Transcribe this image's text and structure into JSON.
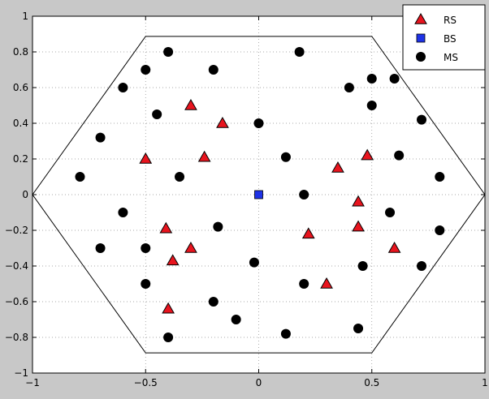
{
  "chart_data": {
    "type": "scatter",
    "title": "",
    "xlabel": "",
    "ylabel": "",
    "xlim": [
      -1,
      1
    ],
    "ylim": [
      -1,
      1
    ],
    "xticks": [
      -1,
      -0.5,
      0,
      0.5,
      1
    ],
    "yticks": [
      -1,
      -0.8,
      -0.6,
      -0.4,
      -0.2,
      0,
      0.2,
      0.4,
      0.6,
      0.8,
      1
    ],
    "xtick_labels": [
      "−1",
      "−0.5",
      "0",
      "0.5",
      "1"
    ],
    "ytick_labels": [
      "−1",
      "−0.8",
      "−0.6",
      "−0.4",
      "−0.2",
      "0",
      "0.2",
      "0.4",
      "0.6",
      "0.8",
      "1"
    ],
    "grid": true,
    "legend_position": "top-right",
    "background_color": "#c8c8c8",
    "plot_color": "#ffffff",
    "hexagon": [
      [
        -1,
        0
      ],
      [
        -0.5,
        0.887
      ],
      [
        0.5,
        0.887
      ],
      [
        1,
        0
      ],
      [
        0.5,
        -0.887
      ],
      [
        -0.5,
        -0.887
      ]
    ],
    "series": [
      {
        "name": "RS",
        "marker": "triangle",
        "color": "#e8141e",
        "points": [
          [
            -0.3,
            0.5
          ],
          [
            -0.16,
            0.4
          ],
          [
            -0.5,
            0.2
          ],
          [
            -0.24,
            0.21
          ],
          [
            0.35,
            0.15
          ],
          [
            0.48,
            0.22
          ],
          [
            0.44,
            -0.04
          ],
          [
            0.44,
            -0.18
          ],
          [
            0.22,
            -0.22
          ],
          [
            0.6,
            -0.3
          ],
          [
            0.3,
            -0.5
          ],
          [
            -0.41,
            -0.19
          ],
          [
            -0.3,
            -0.3
          ],
          [
            -0.38,
            -0.37
          ],
          [
            -0.4,
            -0.64
          ]
        ]
      },
      {
        "name": "BS",
        "marker": "square",
        "color": "#1e32e6",
        "points": [
          [
            0,
            0
          ]
        ]
      },
      {
        "name": "MS",
        "marker": "circle",
        "color": "#000000",
        "points": [
          [
            -0.4,
            0.8
          ],
          [
            -0.2,
            0.7
          ],
          [
            -0.5,
            0.7
          ],
          [
            -0.6,
            0.6
          ],
          [
            -0.45,
            0.45
          ],
          [
            -0.7,
            0.32
          ],
          [
            -0.79,
            0.1
          ],
          [
            -0.35,
            0.1
          ],
          [
            0,
            0.4
          ],
          [
            0.18,
            0.8
          ],
          [
            0.4,
            0.6
          ],
          [
            0.5,
            0.65
          ],
          [
            0.6,
            0.65
          ],
          [
            0.5,
            0.5
          ],
          [
            0.72,
            0.42
          ],
          [
            0.12,
            0.21
          ],
          [
            0.62,
            0.22
          ],
          [
            0.8,
            0.1
          ],
          [
            0.2,
            0
          ],
          [
            -0.6,
            -0.1
          ],
          [
            -0.18,
            -0.18
          ],
          [
            0.58,
            -0.1
          ],
          [
            0.8,
            -0.2
          ],
          [
            -0.7,
            -0.3
          ],
          [
            -0.5,
            -0.3
          ],
          [
            -0.02,
            -0.38
          ],
          [
            0.46,
            -0.4
          ],
          [
            0.72,
            -0.4
          ],
          [
            -0.5,
            -0.5
          ],
          [
            0.2,
            -0.5
          ],
          [
            -0.2,
            -0.6
          ],
          [
            -0.1,
            -0.7
          ],
          [
            -0.4,
            -0.8
          ],
          [
            0.12,
            -0.78
          ],
          [
            0.44,
            -0.75
          ]
        ]
      }
    ]
  }
}
